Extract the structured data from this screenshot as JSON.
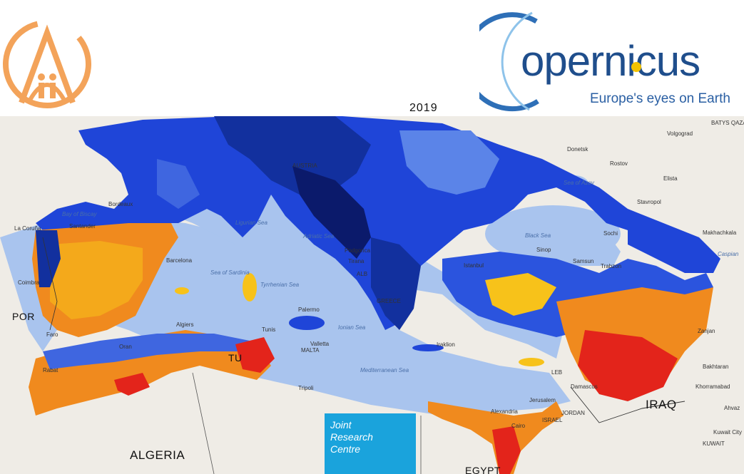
{
  "header": {
    "logo_left": "institution-emblem-logo",
    "copernicus_word": "opernicus",
    "copernicus_tagline": "Europe's eyes on Earth",
    "year": "2019"
  },
  "map": {
    "countries": [
      "ALGERIA",
      "IRAQ",
      "POR",
      "TU",
      "EGYPT"
    ],
    "seas": [
      "Bay of Biscay",
      "Ligurian Sea",
      "Adriatic Sea",
      "Tyrrhenian Sea",
      "Sea of Sardinia",
      "Ionian Sea",
      "Mediterranean Sea",
      "Black Sea",
      "Sea of Azov",
      "Caspian"
    ],
    "cities": [
      "La Coruña",
      "Santander",
      "Bordeaux",
      "Barcelona",
      "Coimbra",
      "Faro",
      "Algiers",
      "Oran",
      "Rabat",
      "Tunis",
      "Palermo",
      "Valletta",
      "Tripoli",
      "Podgorica",
      "Tirana",
      "Istanbul",
      "Sinop",
      "Samsun",
      "Trabzon",
      "Iraklion",
      "Alexandria",
      "Cairo",
      "Jerusalem",
      "Damascus",
      "Rostov",
      "Donetsk",
      "Volgograd",
      "Elista",
      "Stavropol",
      "Makhachkala",
      "Zanjan",
      "Bakhtaran",
      "Khorramabad",
      "Kuwait City",
      "Ahvaz",
      "Sochi",
      "La Valletta"
    ],
    "small_labels": [
      "MALTA",
      "ISRAEL",
      "JORDAN",
      "KUWAIT",
      "BATYS QAZA",
      "LEB",
      "ALB",
      "GREECE",
      "AUSTRIA"
    ]
  },
  "jrc": {
    "line1": "Joint",
    "line2": "Research",
    "line3": "Centre"
  },
  "colors": {
    "wet_dark": "#0b1a6b",
    "wet": "#1f45d8",
    "wet_light": "#8fb0f0",
    "sea": "#a9c4ee",
    "dry_yellow": "#f7c21a",
    "dry_orange": "#f08a1e",
    "dry_red": "#e3241b",
    "land_outside": "#efece6",
    "jrc_blue": "#1aa3dc",
    "copernicus_blue": "#1f4e8c"
  }
}
